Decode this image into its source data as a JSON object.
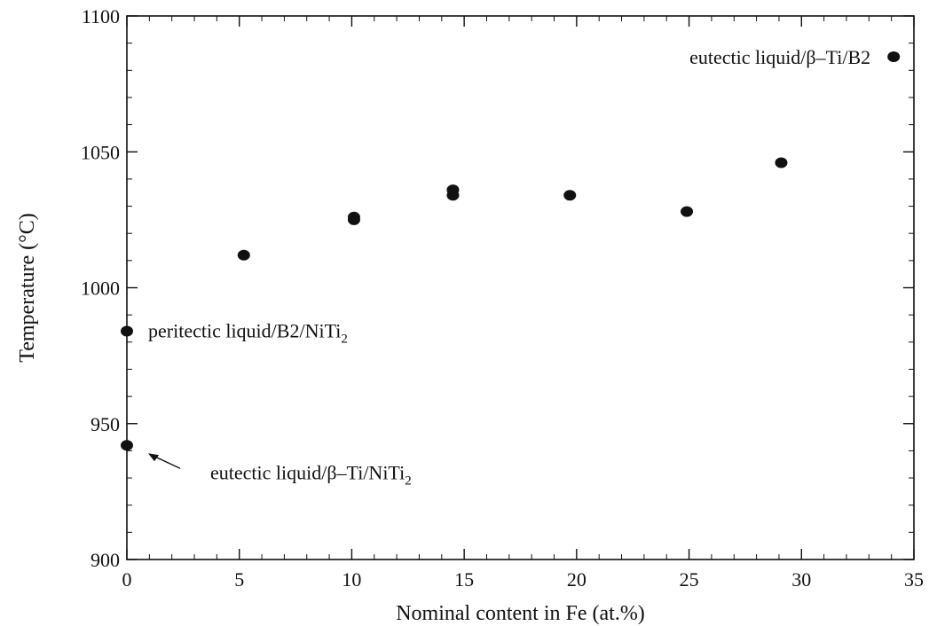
{
  "chart_data": {
    "type": "scatter",
    "xlabel": "Nominal content in Fe (at.%)",
    "ylabel": "Temperature (°C)",
    "xlim": [
      0,
      35
    ],
    "ylim": [
      900,
      1100
    ],
    "xticks": [
      0,
      5,
      10,
      15,
      20,
      25,
      30,
      35
    ],
    "yticks": [
      900,
      950,
      1000,
      1050,
      1100
    ],
    "grid": false,
    "legend": "none",
    "marker_color": "#111111",
    "points": [
      {
        "x": 0,
        "y": 984
      },
      {
        "x": 0,
        "y": 942
      },
      {
        "x": 5.2,
        "y": 1012
      },
      {
        "x": 10.1,
        "y": 1025
      },
      {
        "x": 10.1,
        "y": 1026
      },
      {
        "x": 14.5,
        "y": 1034
      },
      {
        "x": 14.5,
        "y": 1036
      },
      {
        "x": 19.7,
        "y": 1034
      },
      {
        "x": 24.9,
        "y": 1028
      },
      {
        "x": 29.1,
        "y": 1046
      },
      {
        "x": 34.1,
        "y": 1085
      }
    ],
    "annotations": [
      {
        "text": "peritectic liquid/B2/NiTi",
        "subscript": "2",
        "x": 0,
        "y": 984,
        "placement": "right"
      },
      {
        "text": "eutectic liquid/β–Ti/NiTi",
        "subscript": "2",
        "x": 0,
        "y": 942,
        "placement": "lower-right",
        "arrow": true
      },
      {
        "text": "eutectic liquid/β–Ti/B2",
        "subscript": "",
        "x": 34.1,
        "y": 1085,
        "placement": "left"
      }
    ]
  }
}
